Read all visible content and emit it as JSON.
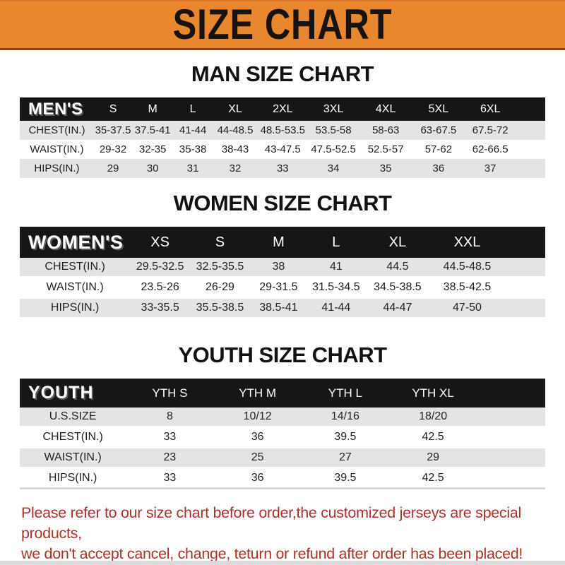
{
  "banner": {
    "title": "SIZE CHART"
  },
  "colors": {
    "banner_bg": "#E8872E",
    "banner_edge": "#8F3E1B",
    "header_bar": "#161616",
    "row_gray": "#E4E4E4",
    "disclaimer_red": "#A8342B"
  },
  "chart_data": [
    {
      "type": "table",
      "title": "MAN SIZE CHART",
      "header_label": "MEN'S",
      "columns": [
        "S",
        "M",
        "L",
        "XL",
        "2XL",
        "3XL",
        "4XL",
        "5XL",
        "6XL"
      ],
      "rows": [
        {
          "label": "CHEST(IN.)",
          "values": [
            "35-37.5",
            "37.5-41",
            "41-44",
            "44-48.5",
            "48.5-53.5",
            "53.5-58",
            "58-63",
            "63-67.5",
            "67.5-72"
          ]
        },
        {
          "label": "WAIST(IN.)",
          "values": [
            "29-32",
            "32-35",
            "35-38",
            "38-43",
            "43-47.5",
            "47.5-52.5",
            "52.5-57",
            "57-62",
            "62-66.5"
          ]
        },
        {
          "label": "HIPS(IN.)",
          "values": [
            "29",
            "30",
            "31",
            "32",
            "33",
            "34",
            "35",
            "36",
            "37"
          ]
        }
      ]
    },
    {
      "type": "table",
      "title": "WOMEN SIZE CHART",
      "header_label": "WOMEN'S",
      "columns": [
        "XS",
        "S",
        "M",
        "L",
        "XL",
        "XXL"
      ],
      "rows": [
        {
          "label": "CHEST(IN.)",
          "values": [
            "29.5-32.5",
            "32.5-35.5",
            "38",
            "41",
            "44.5",
            "44.5-48.5"
          ]
        },
        {
          "label": "WAIST(IN.)",
          "values": [
            "23.5-26",
            "26-29",
            "29-31.5",
            "31.5-34.5",
            "34.5-38.5",
            "38.5-42.5"
          ]
        },
        {
          "label": "HIPS(IN.)",
          "values": [
            "33-35.5",
            "35.5-38.5",
            "38.5-41",
            "41-44",
            "44-47",
            "47-50"
          ]
        }
      ]
    },
    {
      "type": "table",
      "title": "YOUTH SIZE CHART",
      "header_label": "YOUTH",
      "columns": [
        "YTH S",
        "YTH M",
        "YTH L",
        "YTH XL"
      ],
      "rows": [
        {
          "label": "U.S.SIZE",
          "values": [
            "8",
            "10/12",
            "14/16",
            "18/20"
          ]
        },
        {
          "label": "CHEST(IN.)",
          "values": [
            "33",
            "36",
            "39.5",
            "42.5"
          ]
        },
        {
          "label": "WAIST(IN.)",
          "values": [
            "23",
            "25",
            "27",
            "29"
          ]
        },
        {
          "label": "HIPS(IN.)",
          "values": [
            "33",
            "36",
            "39.5",
            "42.5"
          ]
        }
      ]
    }
  ],
  "disclaimer": {
    "line1": "Please refer to our size chart before order,the customized jerseys are special products,",
    "line2": "we don't accept cancel, change, teturn or refund after order has been placed!"
  }
}
